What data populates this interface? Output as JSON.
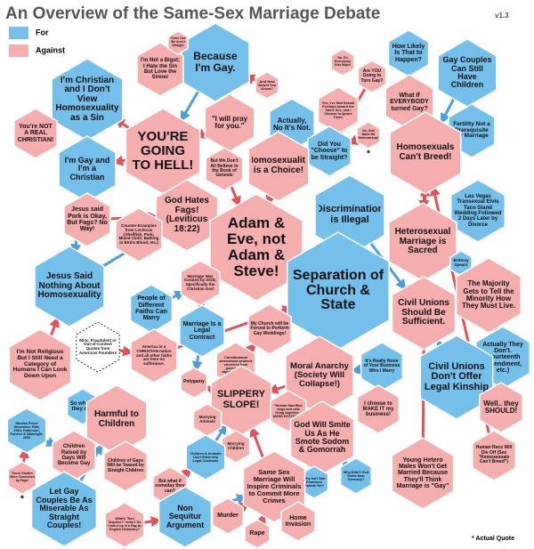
{
  "header": {
    "title": "An Overview of the Same-Sex Marriage Debate",
    "version": "v1.3"
  },
  "legend": {
    "for": "For",
    "against": "Against"
  },
  "nodes": [
    {
      "label": "Because I'm Gay."
    },
    {
      "label": "I'm Not a Bigot; I Hate the Sin But Love the Sinner"
    },
    {
      "label": "Turns Out We Aren't Straight"
    },
    {
      "label": "I'm Christian and I Don't View Homosexuality as a Sin"
    },
    {
      "label": "You're NOT A REAL CHRISTIAN!"
    },
    {
      "label": "\"I will pray for you.\""
    },
    {
      "label": "YOU'RE GOING TO HELL!"
    },
    {
      "label": "I'm Gay and I'm a Christian"
    },
    {
      "label": "And How Would You Know?"
    },
    {
      "label": "Actually, No It's Not."
    },
    {
      "label": "No, It's Everybody Else Might"
    },
    {
      "label": "Are YOU Going to Turn Gay?"
    },
    {
      "label": "How Likely Is That to Happen?"
    },
    {
      "label": "Gay Couples Can Still Have Children"
    },
    {
      "label": "What If EVERYBODY turned Gay?"
    },
    {
      "label": "Yes, I've Had Sexual Feelings toward the Same Sex, and I Choose to Ignore Them."
    },
    {
      "label": "No, God Made Me Heterosexual.",
      "mark": "*"
    },
    {
      "label": "Did You \"Choose\" to be Straight?"
    },
    {
      "label": "But We Don't All Believe in the Book of Genesis"
    },
    {
      "label": "Homosexuality is a Choice!"
    },
    {
      "label": "Fertility Not a Prerequisite for Marriage"
    },
    {
      "label": "Homosexuals Can't Breed!"
    },
    {
      "label": "God Hates Fags! (Leviticus 18:22)"
    },
    {
      "label": "Adam & Eve, not Adam & Steve!"
    },
    {
      "label": "Discrimination is Illegal"
    },
    {
      "label": "Las Vegas Transexual Elvis Taco Stand Wedding Followed 2 Days Later by Divorce"
    },
    {
      "label": "Jesus said Pork is Okay, But Fags? No Way!"
    },
    {
      "label": "Counter-Examples from Leviticus (Shellfish, Pork, Mixed Cloth, Bathing in Bird's Blood, etc.)"
    },
    {
      "label": "Heterosexual Marriage is Sacred"
    },
    {
      "label": "Brittney Spears"
    },
    {
      "label": "Separation of Church & State"
    },
    {
      "label": "Jesus Said Nothing About Homosexuality"
    },
    {
      "label": "Marriage Was Created by GOD, Specifically the Christian God"
    },
    {
      "label": "People of Different Faiths Can Marry"
    },
    {
      "label": "Marriage Is a Legal Contract"
    },
    {
      "label": "The Majority Gets to Tell the Minority How They Must Live."
    },
    {
      "label": "Civil Unions Should Be Sufficient."
    },
    {
      "label": "Misc. Fraudulent or Out-of-Context Quotes from American Founders"
    },
    {
      "label": "America is a CHRISTIAN nation and all other faiths are here on sufferance."
    },
    {
      "label": "My Church will be Forced to Perform Gay Weddings!"
    },
    {
      "label": "Constitutional amendment protects churches from government-stipulated actions"
    },
    {
      "label": "Actually They Don't. (Fourteenth Amendment, etc.)"
    },
    {
      "label": "I'm Not Religious But I Still Need a Category of Humans I Can Look Down Upon"
    },
    {
      "label": "Moral Anarchy (Society Will Collapse!)"
    },
    {
      "label": "It's Really None of Your Business Who I Marry"
    },
    {
      "label": "Civil Unions Don't Offer Legal Kinship"
    },
    {
      "label": "Polygamy"
    },
    {
      "label": "SLIPPERY SLOPE!"
    },
    {
      "label": "\"Human Sacrifice, dogs and cats living together... MASS HYSTERIA!\""
    },
    {
      "label": "I choose to MAKE IT my business!"
    },
    {
      "label": "Well.. they SHOULD!"
    },
    {
      "label": "So what if they do?"
    },
    {
      "label": "Harmful to Children"
    },
    {
      "label": "Marrying Animals"
    },
    {
      "label": "Marrying Children"
    },
    {
      "label": "Studies Prove Otherwise: Falk, 1994; Patterson, Fulcher & Wainright, 2002"
    },
    {
      "label": "God Will Smite Us As He Smote Sodom & Gomorrah"
    },
    {
      "label": "Children Raised by Gays Will Become Gay"
    },
    {
      "label": "Children of Gays Will be Teased by Straight Children"
    },
    {
      "label": "Children & Animals Can't Enter Into Legal Contracts"
    },
    {
      "label": "Those Studies Were Conducted by Fags!",
      "mark": "*"
    },
    {
      "label": "Why Didn't God Smite Nazi Germany?"
    },
    {
      "label": "Why Isn't San Francisco Rubble Yet?"
    },
    {
      "label": "Young Hetero Males Won't Get Married Because They'll Think Marriage is \"Gay\""
    },
    {
      "label": "Human Race Will Die Off (See \"Homosexuals Can't Breed\")"
    },
    {
      "label": "But what if someday they can?"
    },
    {
      "label": "Same Sex Marriage Will Inspire Criminals to Commit More Crimes"
    },
    {
      "label": "Let Gay Couples Be As Miserable As Straight Couples!"
    },
    {
      "label": "What's \"Non Sequitur?\" mean? Do I look it up in a Fag-to-English Dictionary?",
      "mark": "*"
    },
    {
      "label": "Non Sequitur Argument"
    },
    {
      "label": "Murder"
    },
    {
      "label": "Home Invasion"
    },
    {
      "label": "Rape"
    }
  ],
  "footnote": "* Actual Quote"
}
